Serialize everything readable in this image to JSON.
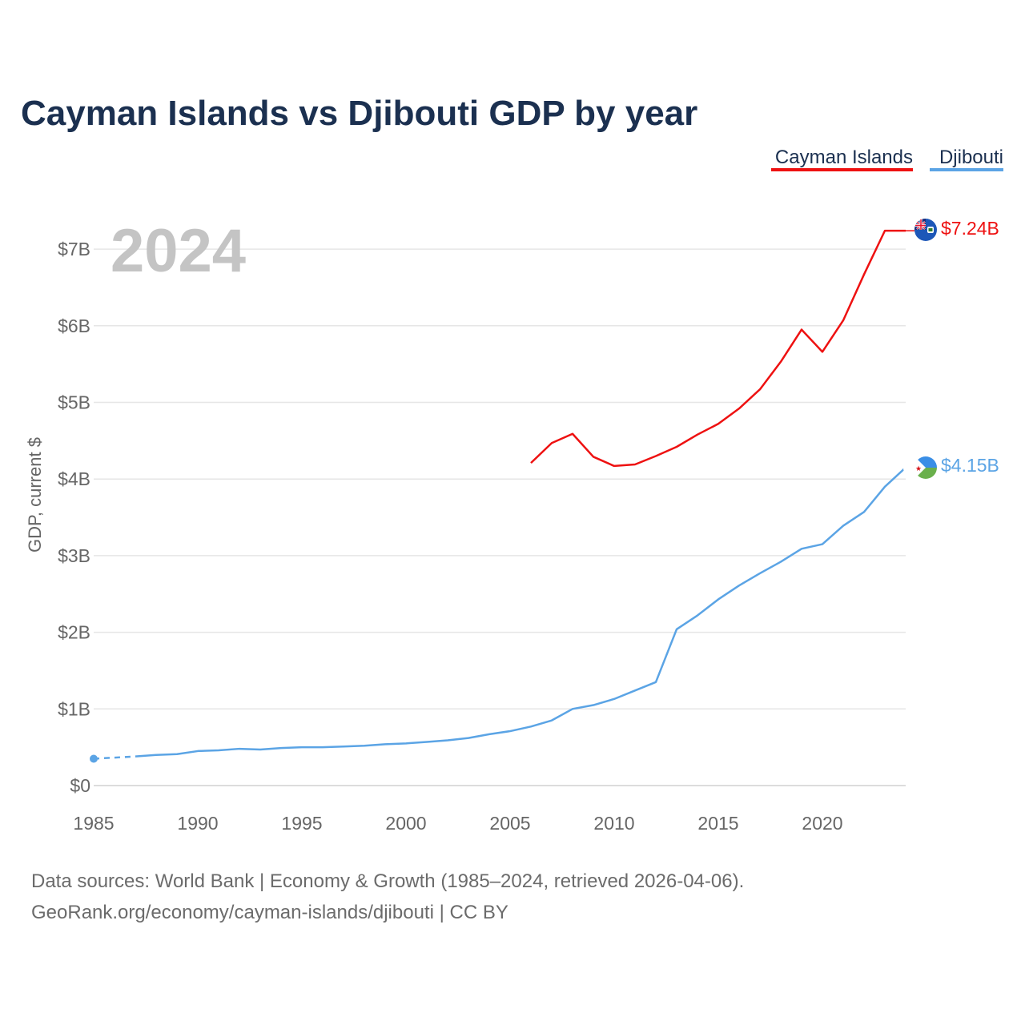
{
  "title": "Cayman Islands vs Djibouti GDP by year",
  "year_label": "2024",
  "legend": [
    {
      "name": "Cayman Islands",
      "color": "#ee1111"
    },
    {
      "name": "Djibouti",
      "color": "#5ba4e5"
    }
  ],
  "source_line1": "Data sources: World Bank | Economy & Growth (1985–2024, retrieved 2026-04-06).",
  "source_line2": "GeoRank.org/economy/cayman-islands/djibouti | CC BY",
  "end_labels": {
    "cayman": "$7.24B",
    "djibouti": "$4.15B"
  },
  "flag_icons": {
    "cayman": "cayman-islands-flag-icon",
    "djibouti": "djibouti-flag-icon"
  },
  "colors": {
    "cayman": "#ee1111",
    "djibouti": "#5ba4e5",
    "title": "#1b3050",
    "grid": "#e6e6e6",
    "axis": "#666666"
  },
  "chart_data": {
    "type": "line",
    "title": "Cayman Islands vs Djibouti GDP by year",
    "xlabel": "",
    "ylabel": "GDP, current $",
    "xlim": [
      1985,
      2024
    ],
    "ylim": [
      0,
      7.5
    ],
    "x_ticks": [
      1985,
      1990,
      1995,
      2000,
      2005,
      2010,
      2015,
      2020
    ],
    "x_tick_labels": [
      "1985",
      "1990",
      "1995",
      "2000",
      "2005",
      "2010",
      "2015",
      "2020"
    ],
    "y_ticks": [
      0,
      1,
      2,
      3,
      4,
      5,
      6,
      7
    ],
    "y_tick_labels": [
      "$0",
      "$1B",
      "$2B",
      "$3B",
      "$4B",
      "$5B",
      "$6B",
      "$7B"
    ],
    "grid": true,
    "legend_position": "top-right",
    "units": "billions of current US$",
    "series": [
      {
        "name": "Cayman Islands",
        "color": "#ee1111",
        "end_label": "$7.24B",
        "points": [
          [
            2006,
            4.21
          ],
          [
            2007,
            4.47
          ],
          [
            2008,
            4.59
          ],
          [
            2009,
            4.29
          ],
          [
            2010,
            4.17
          ],
          [
            2011,
            4.19
          ],
          [
            2012,
            4.3
          ],
          [
            2013,
            4.42
          ],
          [
            2014,
            4.58
          ],
          [
            2015,
            4.72
          ],
          [
            2016,
            4.92
          ],
          [
            2017,
            5.17
          ],
          [
            2018,
            5.53
          ],
          [
            2019,
            5.95
          ],
          [
            2020,
            5.66
          ],
          [
            2021,
            6.07
          ],
          [
            2022,
            6.67
          ],
          [
            2023,
            7.24
          ],
          [
            2024,
            7.24
          ]
        ]
      },
      {
        "name": "Djibouti",
        "color": "#5ba4e5",
        "end_label": "$4.15B",
        "dashed_until": 1987,
        "points": [
          [
            1985,
            0.35
          ],
          [
            1987,
            0.38
          ],
          [
            1988,
            0.4
          ],
          [
            1989,
            0.41
          ],
          [
            1990,
            0.45
          ],
          [
            1991,
            0.46
          ],
          [
            1992,
            0.48
          ],
          [
            1993,
            0.47
          ],
          [
            1994,
            0.49
          ],
          [
            1995,
            0.5
          ],
          [
            1996,
            0.5
          ],
          [
            1997,
            0.51
          ],
          [
            1998,
            0.52
          ],
          [
            1999,
            0.54
          ],
          [
            2000,
            0.55
          ],
          [
            2001,
            0.57
          ],
          [
            2002,
            0.59
          ],
          [
            2003,
            0.62
          ],
          [
            2004,
            0.67
          ],
          [
            2005,
            0.71
          ],
          [
            2006,
            0.77
          ],
          [
            2007,
            0.85
          ],
          [
            2008,
            1.0
          ],
          [
            2009,
            1.05
          ],
          [
            2010,
            1.13
          ],
          [
            2011,
            1.24
          ],
          [
            2012,
            1.35
          ],
          [
            2013,
            2.04
          ],
          [
            2014,
            2.22
          ],
          [
            2015,
            2.43
          ],
          [
            2016,
            2.61
          ],
          [
            2017,
            2.77
          ],
          [
            2018,
            2.92
          ],
          [
            2019,
            3.09
          ],
          [
            2020,
            3.15
          ],
          [
            2021,
            3.39
          ],
          [
            2022,
            3.57
          ],
          [
            2023,
            3.9
          ],
          [
            2024,
            4.15
          ]
        ]
      }
    ]
  }
}
